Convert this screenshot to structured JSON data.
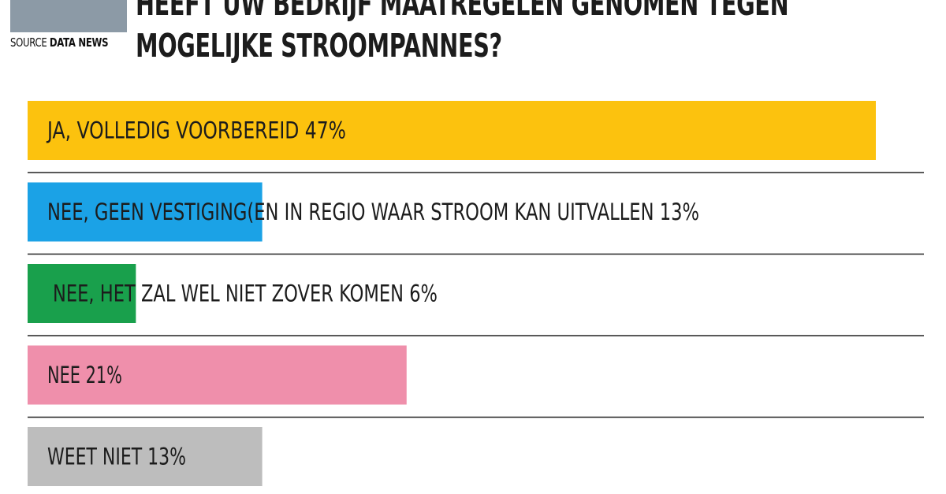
{
  "header": {
    "source_word": "SOURCE",
    "source_name": "DATA NEWS",
    "title_line_1": "HEEFT UW BEDRIJF MAATREGELEN GENOMEN TEGEN",
    "title_line_2": "MOGELIJKE STROOMPANNES?",
    "source_box_color": "#8c9aa6"
  },
  "chart_data": {
    "type": "bar",
    "orientation": "horizontal",
    "title": "HEEFT UW BEDRIJF MAATREGELEN GENOMEN TEGEN MOGELIJKE STROOMPANNES?",
    "categories": [
      "JA, VOLLEDIG VOORBEREID  47%",
      "NEE, GEEN VESTIGING(EN IN REGIO WAAR STROOM KAN UITVALLEN 13%",
      "NEE, HET ZAL WEL NIET ZOVER KOMEN 6%",
      "NEE 21%",
      "WEET NIET 13%"
    ],
    "values": [
      47,
      13,
      6,
      21,
      13
    ],
    "unit": "%",
    "colors": [
      "#fcc20e",
      "#1ba2e6",
      "#19a04c",
      "#ef8fab",
      "#bdbdbd"
    ],
    "xlim": [
      0,
      47
    ],
    "grid": false,
    "legend": "none",
    "separator_color": "#222222"
  }
}
